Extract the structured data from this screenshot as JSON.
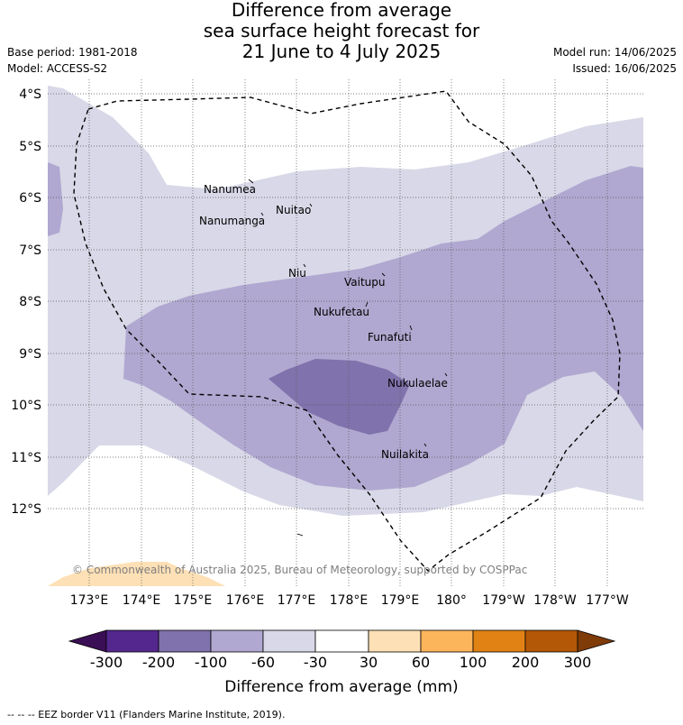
{
  "title": {
    "line1": "Difference from average",
    "line2": "sea surface height forecast for",
    "line3": "21 June to 4 July 2025"
  },
  "meta": {
    "base_period": "Base period: 1981-2018",
    "model": "Model: ACCESS-S2",
    "model_run": "Model run: 14/06/2025",
    "issued": "Issued: 16/06/2025"
  },
  "map": {
    "lat_labels": [
      "4°S",
      "5°S",
      "6°S",
      "7°S",
      "8°S",
      "9°S",
      "10°S",
      "11°S",
      "12°S"
    ],
    "lon_labels": [
      "173°E",
      "174°E",
      "175°E",
      "176°E",
      "177°E",
      "178°E",
      "179°E",
      "180°",
      "179°W",
      "178°W",
      "177°W"
    ],
    "islands": [
      "Nanumea",
      "Nuitao",
      "Nanumanga",
      "Niu",
      "Vaitupu",
      "Nukufetau",
      "Funafuti",
      "Nukulaelae",
      "Nuilakita"
    ],
    "copyright": "© Commonwealth of Australia 2025, Bureau of Meteorology, supported by COSPPac",
    "colors": {
      "band_-30_-60": "#d8d8e8",
      "band_-60_-100": "#b0a8d0",
      "band_-100_-200": "#8072ac",
      "band_30_60": "#fde0b5"
    }
  },
  "colorbar": {
    "tick_labels": [
      "-300",
      "-200",
      "-100",
      "-60",
      "-30",
      "30",
      "60",
      "100",
      "200",
      "300"
    ],
    "title": "Difference from average (mm)",
    "colors": [
      "#3b0f55",
      "#54278f",
      "#8072ac",
      "#b0a8d0",
      "#d8d8e8",
      "#ffffff",
      "#fde0b5",
      "#fdb55c",
      "#e08214",
      "#b35806",
      "#7f3b08"
    ]
  },
  "footnote": "-- -- -- EEZ border V11 (Flanders Marine Institute, 2019)."
}
